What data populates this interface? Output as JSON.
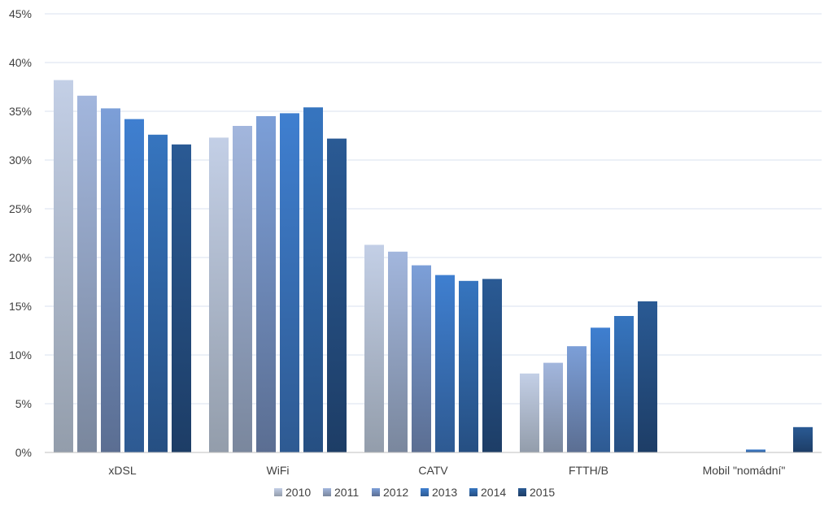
{
  "chart_data": {
    "type": "bar",
    "categories": [
      "xDSL",
      "WiFi",
      "CATV",
      "FTTH/B",
      "Mobil \"nomádní\""
    ],
    "series": [
      {
        "name": "2010",
        "values": [
          38.2,
          32.3,
          21.3,
          8.1,
          null
        ],
        "color_top": "#c3cfe6",
        "color_bottom": "#939dab"
      },
      {
        "name": "2011",
        "values": [
          36.6,
          33.5,
          20.6,
          9.2,
          null
        ],
        "color_top": "#a2b6dd",
        "color_bottom": "#7a879d"
      },
      {
        "name": "2012",
        "values": [
          35.3,
          34.5,
          19.2,
          10.9,
          null
        ],
        "color_top": "#7c9fd8",
        "color_bottom": "#5b6e92"
      },
      {
        "name": "2013",
        "values": [
          34.2,
          34.8,
          18.2,
          12.8,
          0.3
        ],
        "color_top": "#3f7fd0",
        "color_bottom": "#2e5a92"
      },
      {
        "name": "2014",
        "values": [
          32.6,
          35.4,
          17.6,
          14.0,
          null
        ],
        "color_top": "#3675bf",
        "color_bottom": "#264f82"
      },
      {
        "name": "2015",
        "values": [
          31.6,
          32.2,
          17.8,
          15.5,
          2.6
        ],
        "color_top": "#2a5a94",
        "color_bottom": "#1d3d66"
      }
    ],
    "title": "",
    "xlabel": "",
    "ylabel": "",
    "ylim": [
      0,
      45
    ],
    "yticks": [
      "0%",
      "5%",
      "10%",
      "15%",
      "20%",
      "25%",
      "30%",
      "35%",
      "40%",
      "45%"
    ],
    "grid": true,
    "legend_position": "bottom"
  }
}
